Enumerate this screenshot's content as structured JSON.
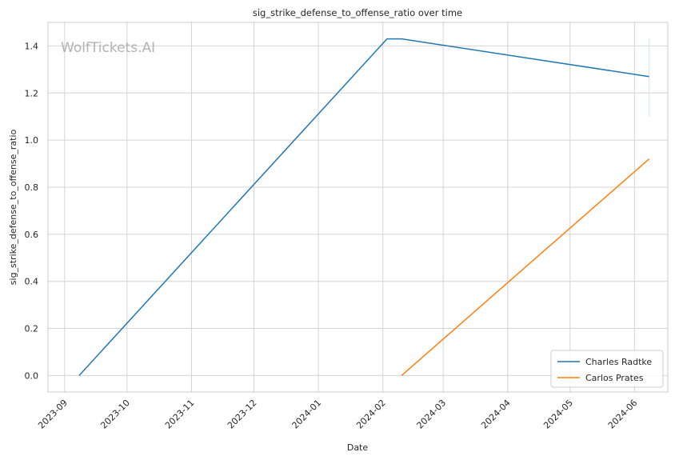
{
  "chart_data": {
    "type": "line",
    "title": "sig_strike_defense_to_offense_ratio over time",
    "xlabel": "Date",
    "ylabel": "sig_strike_defense_to_offense_ratio",
    "watermark": "WolfTickets.AI",
    "x_ticks": [
      "2023-09",
      "2023-10",
      "2023-11",
      "2023-12",
      "2024-01",
      "2024-02",
      "2024-03",
      "2024-04",
      "2024-05",
      "2024-06"
    ],
    "y_ticks": [
      "0.0",
      "0.2",
      "0.4",
      "0.6",
      "0.8",
      "1.0",
      "1.2",
      "1.4"
    ],
    "xlim": [
      "2023-08-24",
      "2024-06-17"
    ],
    "ylim": [
      -0.07,
      1.5
    ],
    "grid": true,
    "legend_position": "lower-right",
    "series": [
      {
        "name": "Charles Radtke",
        "color": "#1f77b4",
        "x": [
          "2023-09-08",
          "2024-02-03",
          "2024-02-10",
          "2024-06-08"
        ],
        "y": [
          0.0,
          1.43,
          1.43,
          1.27
        ]
      },
      {
        "name": "Carlos Prates",
        "color": "#ff7f0e",
        "x": [
          "2024-02-10",
          "2024-06-08"
        ],
        "y": [
          0.0,
          0.92
        ]
      }
    ],
    "annotations": [
      {
        "type": "vertical-segment",
        "x": "2024-06-08",
        "y_range": [
          1.1,
          1.43
        ],
        "color": "#d6e4f0"
      }
    ]
  }
}
